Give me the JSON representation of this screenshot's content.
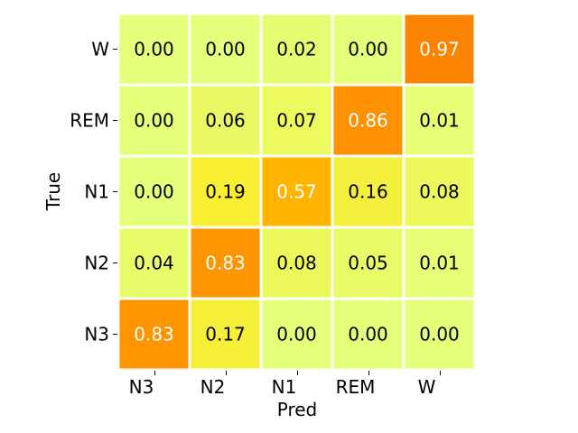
{
  "chart_data": {
    "type": "heatmap",
    "title": "",
    "xlabel": "Pred",
    "ylabel": "True",
    "x_categories": [
      "N3",
      "N2",
      "N1",
      "REM",
      "W"
    ],
    "y_categories": [
      "W",
      "REM",
      "N1",
      "N2",
      "N3"
    ],
    "values": [
      [
        0.0,
        0.0,
        0.02,
        0.0,
        0.97
      ],
      [
        0.0,
        0.06,
        0.07,
        0.86,
        0.01
      ],
      [
        0.0,
        0.19,
        0.57,
        0.16,
        0.08
      ],
      [
        0.04,
        0.83,
        0.08,
        0.05,
        0.01
      ],
      [
        0.83,
        0.17,
        0.0,
        0.0,
        0.0
      ]
    ],
    "value_format": "0.00",
    "colormap": "Wistia",
    "value_range": [
      0,
      1
    ],
    "grid_line_color": "#ffffff",
    "text_color_dark": "#000000",
    "text_color_light": "#ffffff"
  }
}
